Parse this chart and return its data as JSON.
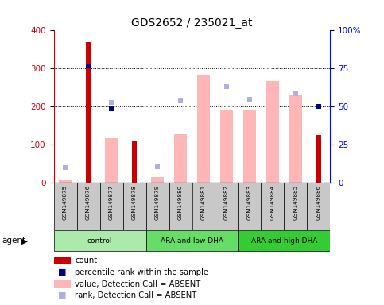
{
  "title": "GDS2652 / 235021_at",
  "samples": [
    "GSM149875",
    "GSM149876",
    "GSM149877",
    "GSM149878",
    "GSM149879",
    "GSM149880",
    "GSM149881",
    "GSM149882",
    "GSM149883",
    "GSM149884",
    "GSM149885",
    "GSM149886"
  ],
  "groups": [
    {
      "label": "control",
      "start": 0,
      "end": 4,
      "color": "#aaeaaa"
    },
    {
      "label": "ARA and low DHA",
      "start": 4,
      "end": 8,
      "color": "#66dd66"
    },
    {
      "label": "ARA and high DHA",
      "start": 8,
      "end": 12,
      "color": "#33cc33"
    }
  ],
  "count": [
    null,
    370,
    null,
    110,
    null,
    null,
    null,
    null,
    null,
    null,
    null,
    125
  ],
  "percentile_rank": [
    null,
    308,
    195,
    null,
    null,
    null,
    null,
    null,
    null,
    null,
    null,
    200
  ],
  "value_absent": [
    10,
    null,
    118,
    null,
    15,
    128,
    285,
    193,
    193,
    267,
    230,
    null
  ],
  "rank_absent": [
    40,
    null,
    212,
    null,
    42,
    215,
    null,
    253,
    220,
    null,
    235,
    null
  ],
  "ylim_left": [
    0,
    400
  ],
  "ylim_right": [
    0,
    100
  ],
  "yticks_left": [
    0,
    100,
    200,
    300,
    400
  ],
  "yticks_right": [
    0,
    25,
    50,
    75,
    100
  ],
  "grid_lines": [
    100,
    200,
    300
  ],
  "count_color": "#cc0000",
  "percentile_color": "#00008b",
  "value_absent_color": "#ffb6b6",
  "rank_absent_color": "#b0b0e0",
  "sample_box_color": "#c8c8c8",
  "figsize": [
    4.83,
    3.84
  ],
  "dpi": 100
}
